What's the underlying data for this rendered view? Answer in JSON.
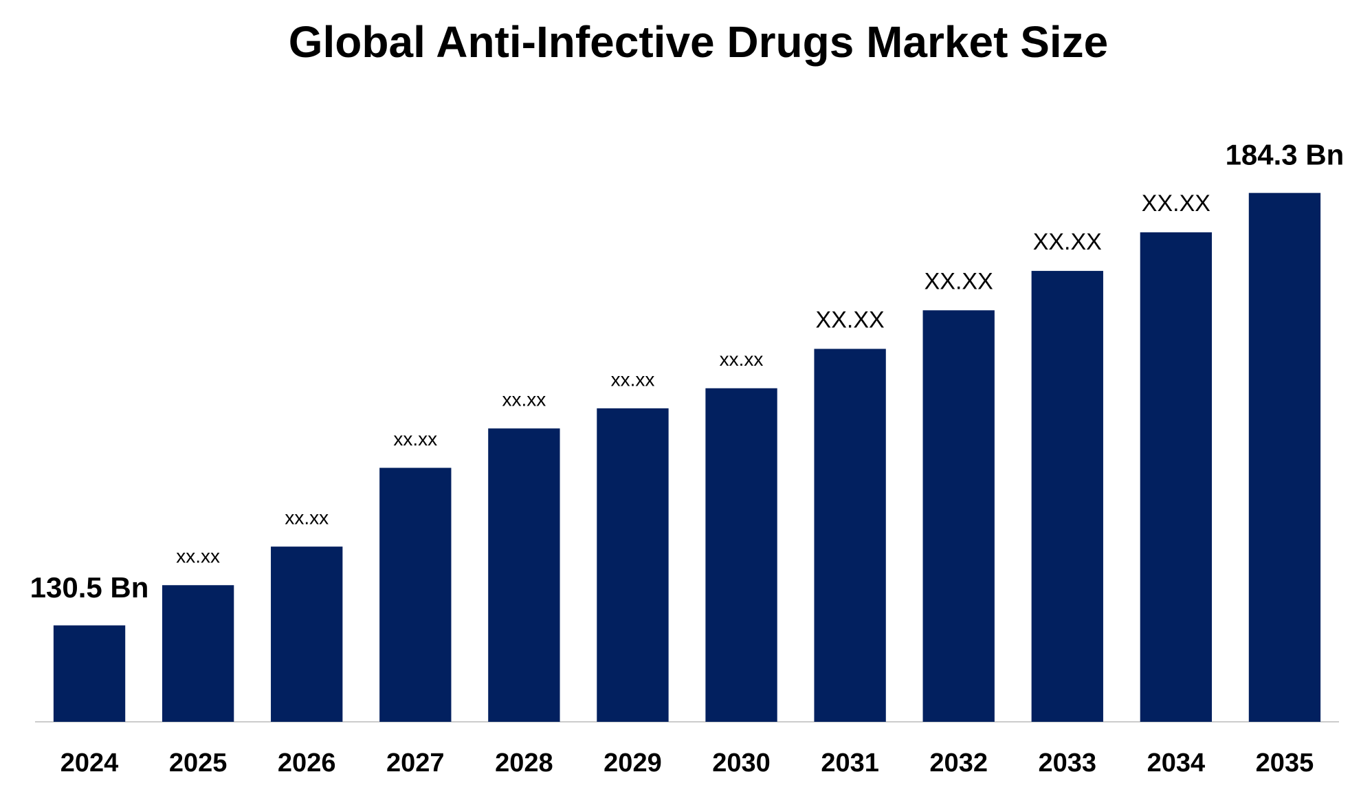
{
  "chart_data": {
    "type": "bar",
    "title": "Global Anti-Infective Drugs Market Size",
    "categories": [
      "2024",
      "2025",
      "2026",
      "2027",
      "2028",
      "2029",
      "2030",
      "2031",
      "2032",
      "2033",
      "2034",
      "2035"
    ],
    "values": [
      130.5,
      135.5,
      140.3,
      150.1,
      155.0,
      157.5,
      160.0,
      164.9,
      169.7,
      174.6,
      179.4,
      184.3
    ],
    "value_labels": [
      "130.5 Bn",
      "xx.xx",
      "xx.xx",
      "xx.xx",
      "xx.xx",
      "xx.xx",
      "xx.xx",
      "XX.XX",
      "XX.XX",
      "XX.XX",
      "XX.XX",
      "184.3 Bn"
    ],
    "color": "#02205f",
    "ylim": [
      118.5,
      190
    ]
  }
}
